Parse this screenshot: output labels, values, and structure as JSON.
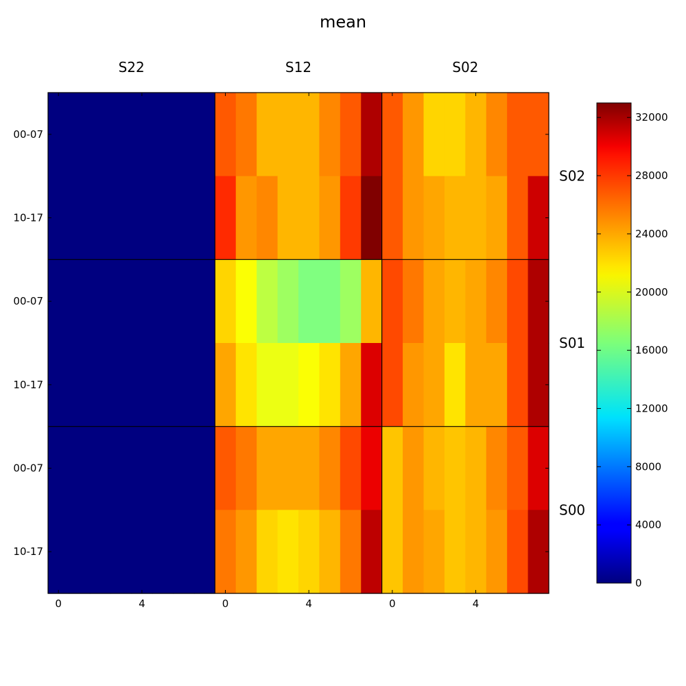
{
  "chart_data": {
    "type": "heatmap",
    "title": "mean",
    "column_groups": [
      "S22",
      "S12",
      "S02"
    ],
    "row_groups": [
      "S02",
      "S01",
      "S00"
    ],
    "row_labels": [
      "00-07",
      "10-17"
    ],
    "x_ticks": [
      "0",
      "4"
    ],
    "x_tick_values": [
      0,
      4
    ],
    "columns_per_group": 8,
    "colormap": "jet",
    "colorbar": {
      "min": 0,
      "max": 33000,
      "ticks": [
        "0",
        "4000",
        "8000",
        "12000",
        "16000",
        "20000",
        "24000",
        "28000",
        "32000"
      ]
    },
    "values": [
      [
        0,
        0,
        0,
        0,
        0,
        0,
        0,
        0,
        26000,
        25000,
        23000,
        23000,
        23000,
        24500,
        26000,
        31500,
        26000,
        24000,
        22000,
        22000,
        23000,
        24500,
        26000,
        26000
      ],
      [
        0,
        0,
        0,
        0,
        0,
        0,
        0,
        0,
        27500,
        24000,
        24500,
        23000,
        23000,
        24000,
        27000,
        33000,
        26000,
        24000,
        23500,
        23000,
        23000,
        23500,
        26000,
        30500
      ],
      [
        0,
        0,
        0,
        0,
        0,
        0,
        0,
        0,
        22000,
        20500,
        18500,
        17500,
        16500,
        16500,
        17500,
        23000,
        26500,
        25000,
        23500,
        23000,
        23500,
        24500,
        26500,
        31500
      ],
      [
        0,
        0,
        0,
        0,
        0,
        0,
        0,
        0,
        23500,
        21500,
        20000,
        20000,
        20500,
        21500,
        23500,
        30000,
        26500,
        24000,
        23500,
        21500,
        23500,
        23500,
        26500,
        31500
      ],
      [
        0,
        0,
        0,
        0,
        0,
        0,
        0,
        0,
        26000,
        25000,
        23500,
        23500,
        23500,
        24500,
        26500,
        29500,
        22500,
        24000,
        23000,
        22500,
        23000,
        24500,
        26000,
        30000
      ],
      [
        0,
        0,
        0,
        0,
        0,
        0,
        0,
        0,
        25000,
        24000,
        22000,
        21500,
        22000,
        23000,
        25000,
        31000,
        22500,
        24000,
        23500,
        22500,
        23000,
        24000,
        26500,
        31500
      ]
    ]
  }
}
